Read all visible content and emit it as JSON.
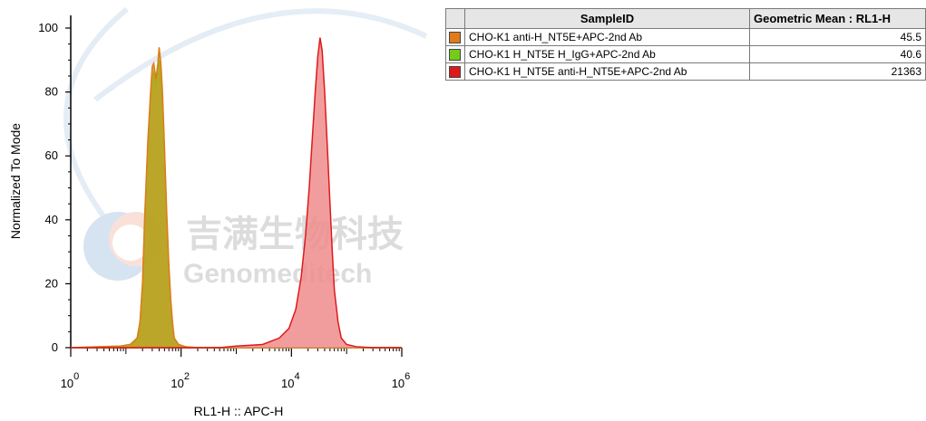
{
  "chart_data": {
    "type": "area",
    "xlabel": "RL1-H :: APC-H",
    "ylabel": "Normalized To Mode",
    "x_scale": "log",
    "xlim": [
      1,
      1000000
    ],
    "ylim": [
      0,
      100
    ],
    "x_ticks": [
      {
        "base": "10",
        "exp": "0",
        "value": 1
      },
      {
        "base": "10",
        "exp": "2",
        "value": 100
      },
      {
        "base": "10",
        "exp": "4",
        "value": 10000
      },
      {
        "base": "10",
        "exp": "6",
        "value": 1000000
      }
    ],
    "y_ticks": [
      "0",
      "20",
      "40",
      "60",
      "80",
      "100"
    ],
    "grid": false,
    "legend_position": "table-right",
    "series": [
      {
        "name": "CHO-K1 H_NT5E H_IgG+APC-2nd Ab",
        "color": "#73cc1a",
        "fill": "#b8a320",
        "x": [
          1,
          8,
          12,
          16,
          18,
          20,
          22,
          25,
          28,
          30,
          32,
          35,
          38,
          40,
          43,
          46,
          50,
          55,
          60,
          65,
          70,
          75,
          90,
          120,
          200,
          1000000
        ],
        "y": [
          0,
          0.5,
          1,
          3,
          8,
          20,
          40,
          62,
          78,
          85,
          86,
          82,
          86,
          90,
          85,
          76,
          60,
          40,
          25,
          14,
          7,
          3,
          1,
          0.3,
          0,
          0
        ]
      },
      {
        "name": "CHO-K1 anti-H_NT5E+APC-2nd Ab",
        "color": "#e07b1a",
        "fill": "#b8a320",
        "x": [
          1,
          8,
          12,
          16,
          18,
          20,
          22,
          25,
          28,
          30,
          32,
          35,
          38,
          40,
          43,
          46,
          50,
          55,
          60,
          65,
          70,
          75,
          90,
          120,
          200,
          1000000
        ],
        "y": [
          0,
          0.5,
          1,
          3,
          8,
          20,
          42,
          65,
          80,
          88,
          89,
          84,
          89,
          94,
          89,
          80,
          63,
          42,
          26,
          15,
          8,
          3,
          1,
          0.3,
          0,
          0
        ]
      },
      {
        "name": "CHO-K1 H_NT5E anti-H_NT5E+APC-2nd Ab",
        "color": "#dd1a1a",
        "fill": "#f08c8c",
        "x": [
          1,
          500,
          1000,
          3000,
          6000,
          9000,
          12000,
          15000,
          18000,
          21000,
          24000,
          27000,
          30000,
          33000,
          36000,
          40000,
          45000,
          50000,
          55000,
          60000,
          70000,
          80000,
          100000,
          150000,
          300000,
          1000000
        ],
        "y": [
          0,
          0,
          0.5,
          1,
          3,
          6,
          12,
          22,
          35,
          50,
          66,
          80,
          91,
          97,
          93,
          80,
          62,
          45,
          30,
          18,
          8,
          3,
          1,
          0.3,
          0,
          0
        ]
      }
    ]
  },
  "legend_table": {
    "headers": [
      "",
      "SampleID",
      "Geometric Mean : RL1-H"
    ],
    "rows": [
      {
        "color": "#e07b1a",
        "sample": "CHO-K1 anti-H_NT5E+APC-2nd Ab",
        "value": "45.5"
      },
      {
        "color": "#73cc1a",
        "sample": "CHO-K1 H_NT5E H_IgG+APC-2nd Ab",
        "value": "40.6"
      },
      {
        "color": "#dd1a1a",
        "sample": "CHO-K1 H_NT5E anti-H_NT5E+APC-2nd Ab",
        "value": "21363"
      }
    ]
  },
  "watermark": {
    "cn": "吉满生物科技",
    "en": "Genomeditech"
  }
}
